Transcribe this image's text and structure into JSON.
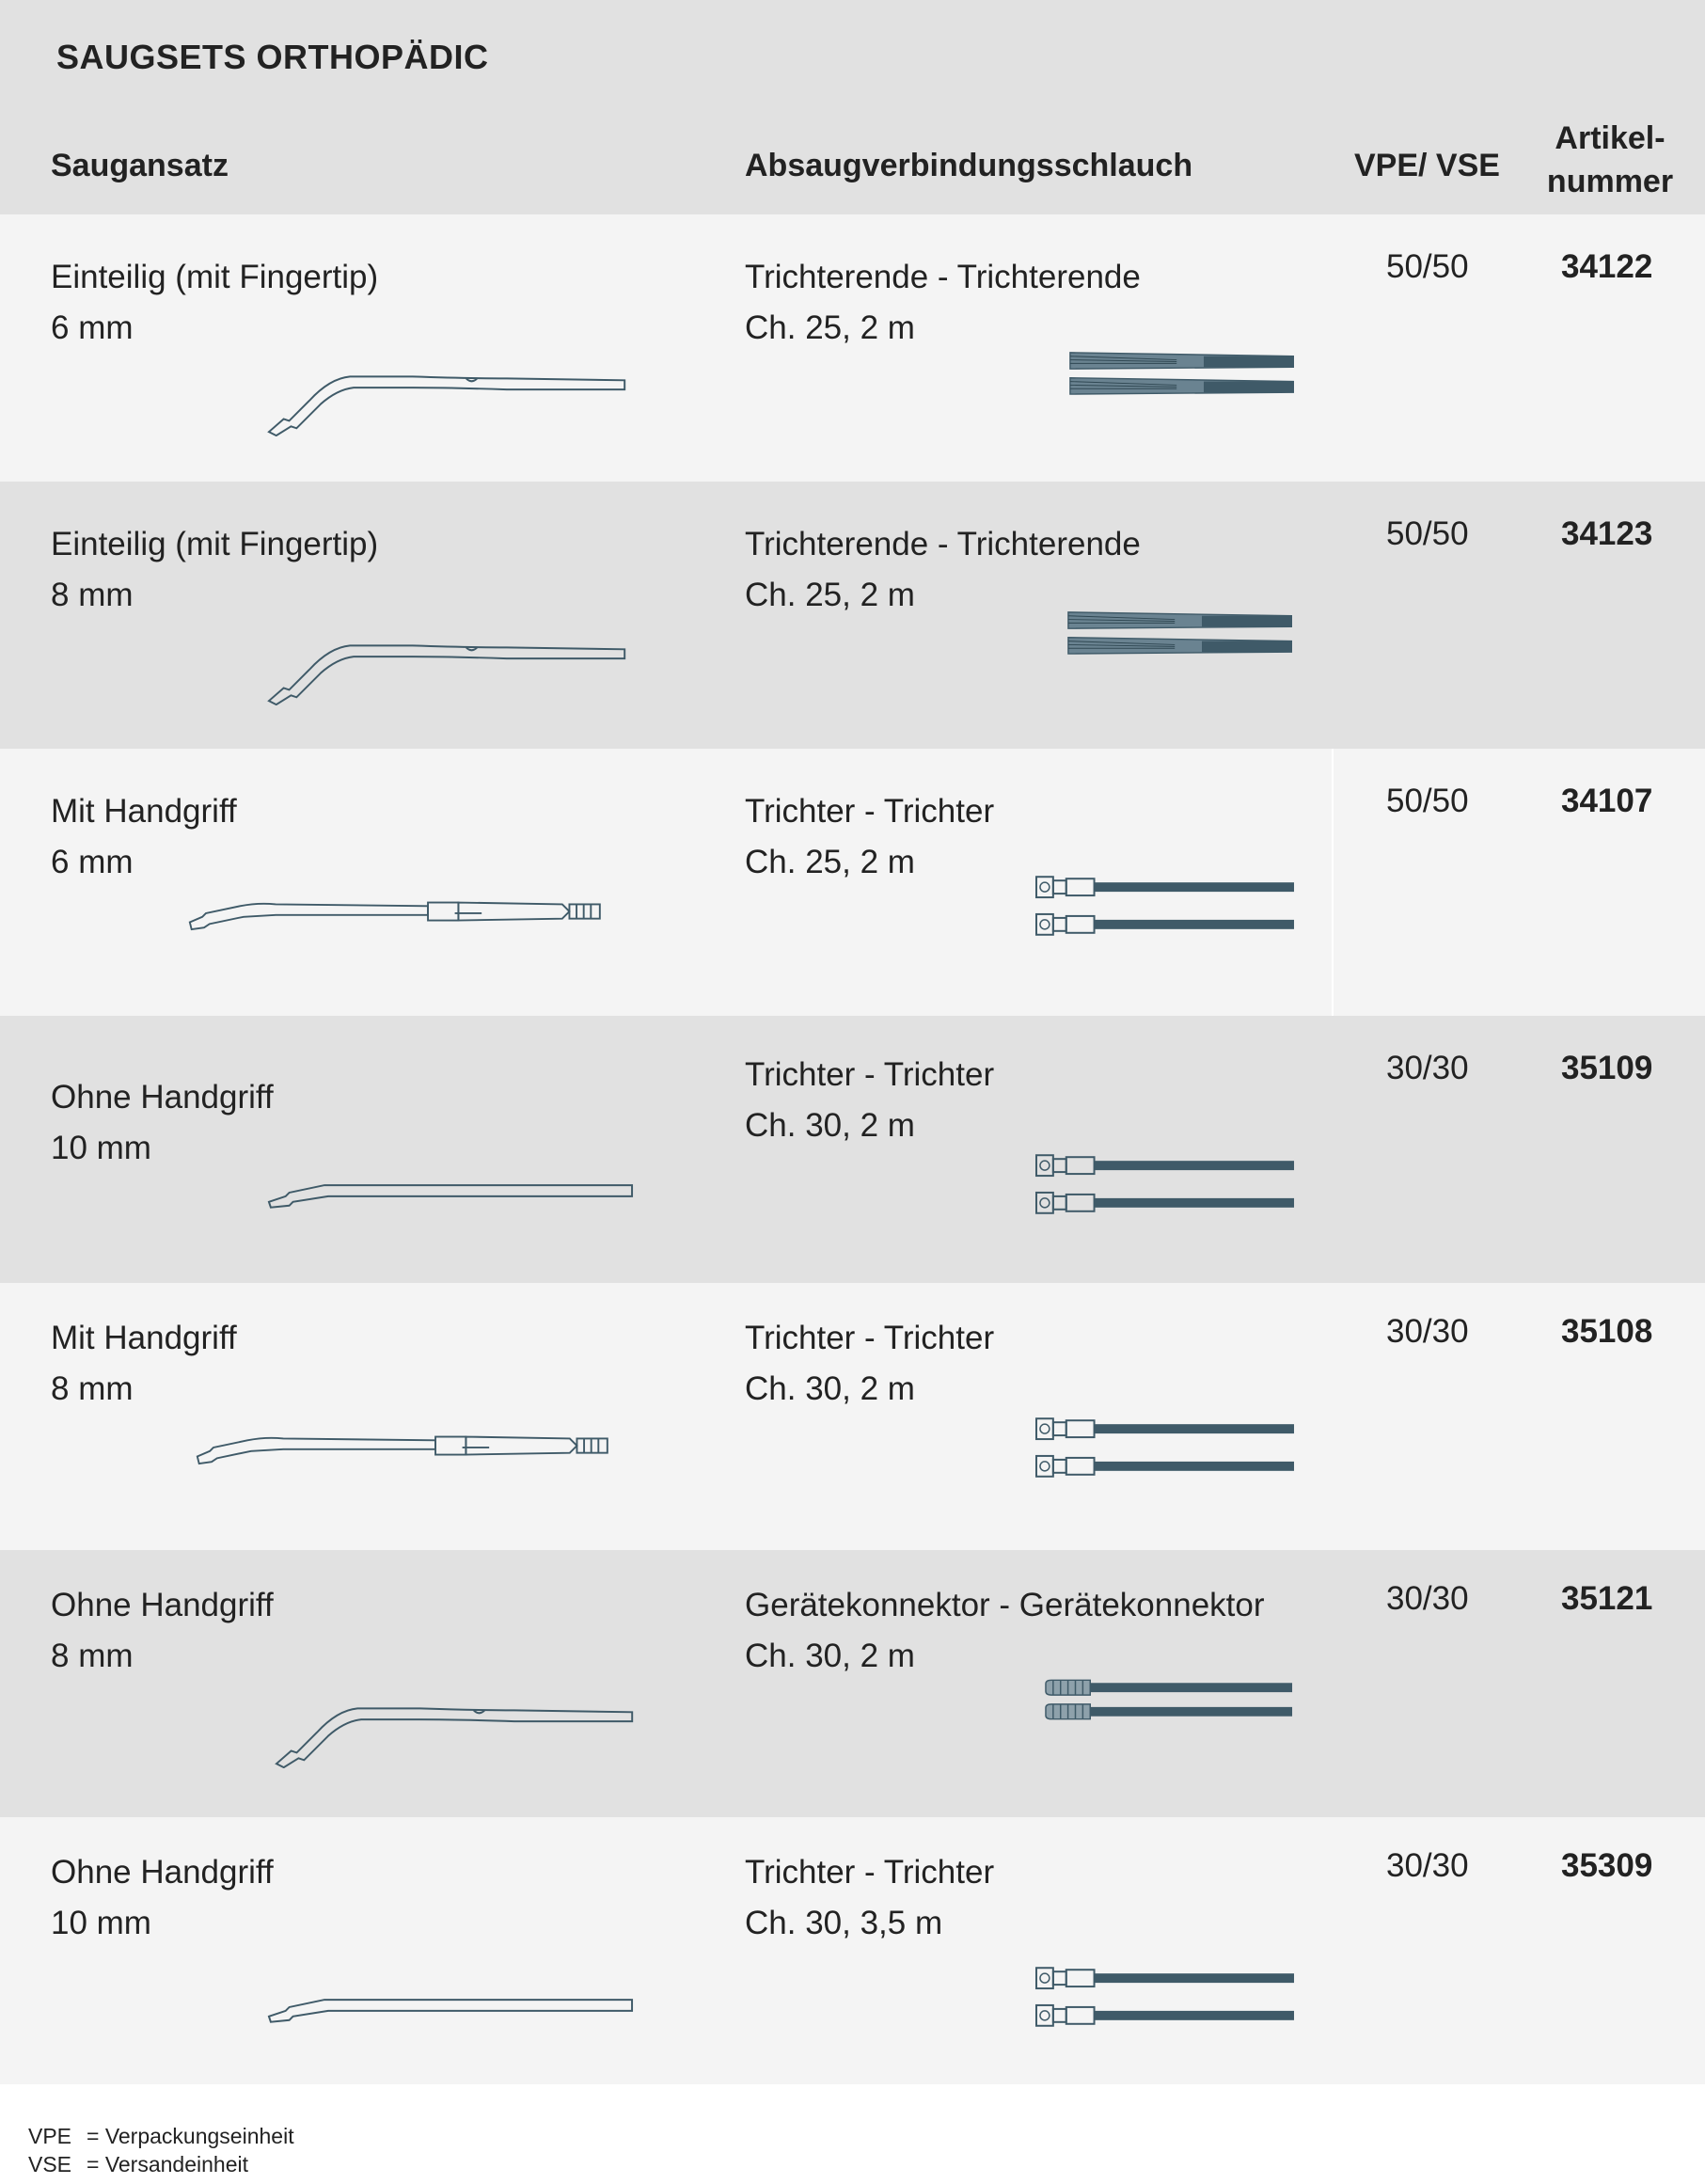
{
  "title": "SAUGSETS ORTHOPÄDIC",
  "columns": {
    "saugansatz": "Saugansatz",
    "schlauch": "Absaugverbindungsschlauch",
    "vpe": "VPE/ VSE",
    "artikel_line1": "Artikel-",
    "artikel_line2": "nummer"
  },
  "rows": [
    {
      "ansatz_name": "Einteilig (mit Fingertip)",
      "ansatz_size": "6 mm",
      "schlauch_name": "Trichterende - Trichterende",
      "schlauch_spec": "Ch. 25, 2 m",
      "vpe": "50/50",
      "artikel": "34122"
    },
    {
      "ansatz_name": "Einteilig (mit Fingertip)",
      "ansatz_size": "8 mm",
      "schlauch_name": "Trichterende - Trichterende",
      "schlauch_spec": "Ch. 25, 2 m",
      "vpe": "50/50",
      "artikel": "34123"
    },
    {
      "ansatz_name": "Mit Handgriff",
      "ansatz_size": "6 mm",
      "schlauch_name": "Trichter - Trichter",
      "schlauch_spec": "Ch. 25, 2 m",
      "vpe": "50/50",
      "artikel": "34107"
    },
    {
      "ansatz_name": "Ohne Handgriff",
      "ansatz_size": "10 mm",
      "schlauch_name": "Trichter - Trichter",
      "schlauch_spec": "Ch. 30, 2 m",
      "vpe": "30/30",
      "artikel": "35109"
    },
    {
      "ansatz_name": "Mit Handgriff",
      "ansatz_size": "8 mm",
      "schlauch_name": "Trichter - Trichter",
      "schlauch_spec": "Ch. 30, 2 m",
      "vpe": "30/30",
      "artikel": "35108"
    },
    {
      "ansatz_name": "Ohne Handgriff",
      "ansatz_size": "8 mm",
      "schlauch_name": "Gerätekonnektor - Gerätekonnektor",
      "schlauch_spec": "Ch. 30, 2 m",
      "vpe": "30/30",
      "artikel": "35121"
    },
    {
      "ansatz_name": "Ohne Handgriff",
      "ansatz_size": "10 mm",
      "schlauch_name": "Trichter - Trichter",
      "schlauch_spec": "Ch. 30, 3,5 m",
      "vpe": "30/30",
      "artikel": "35309"
    }
  ],
  "footer": {
    "vpe_abbr": "VPE",
    "vpe_def": "= Verpackungseinheit",
    "vse_abbr": "VSE",
    "vse_def": "= Versandeinheit"
  },
  "colors": {
    "header_bg": "#e1e1e1",
    "row_light": "#f4f4f4",
    "row_dark": "#e1e1e1",
    "tube": "#3f5a68"
  }
}
